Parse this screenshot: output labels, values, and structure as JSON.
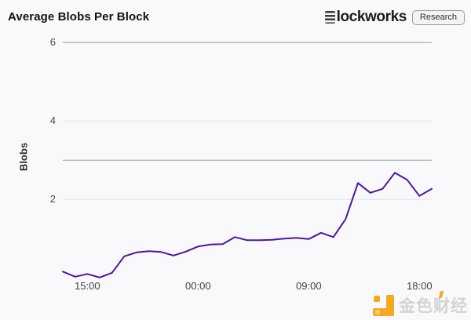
{
  "page": {
    "background": "#f9f9fb"
  },
  "brand": {
    "name": "Blockworks",
    "name_after_mark": "lockworks",
    "badge": "Research"
  },
  "watermark": {
    "text": "金色财经"
  },
  "colors": {
    "line": "#4a15a6",
    "grid_light": "#e4e4e9",
    "grid_dark": "#9b9ba1",
    "tick_text": "#4a4a4f",
    "title_text": "#131316",
    "watermark_orange": "#f6a81f",
    "watermark_gray": "#d3d3d7"
  },
  "chart_data": {
    "type": "line",
    "title": "Average Blobs Per Block",
    "xlabel": "",
    "ylabel": "Blobs",
    "ylim": [
      0,
      6.3
    ],
    "grid": true,
    "legend": false,
    "y_ticks": [
      2,
      4,
      6
    ],
    "reference_lines": [
      3,
      6
    ],
    "x_ticks": [
      {
        "index": 2,
        "label": "15:00"
      },
      {
        "index": 11,
        "label": "00:00"
      },
      {
        "index": 20,
        "label": "09:00"
      },
      {
        "index": 29,
        "label": "18:00"
      }
    ],
    "x": [
      "13:00",
      "14:00",
      "15:00",
      "16:00",
      "17:00",
      "18:00",
      "19:00",
      "20:00",
      "21:00",
      "22:00",
      "23:00",
      "00:00",
      "01:00",
      "02:00",
      "03:00",
      "04:00",
      "05:00",
      "06:00",
      "07:00",
      "08:00",
      "09:00",
      "10:00",
      "11:00",
      "12:00",
      "13:00",
      "14:00",
      "15:00",
      "16:00",
      "17:00",
      "18:00",
      "19:00"
    ],
    "series": [
      {
        "name": "Average Blobs Per Block",
        "values": [
          0.16,
          0.03,
          0.1,
          0.01,
          0.13,
          0.55,
          0.65,
          0.68,
          0.66,
          0.57,
          0.67,
          0.8,
          0.85,
          0.86,
          1.04,
          0.96,
          0.96,
          0.97,
          1.0,
          1.02,
          0.99,
          1.15,
          1.04,
          1.5,
          2.42,
          2.17,
          2.27,
          2.68,
          2.5,
          2.09,
          2.27
        ]
      }
    ]
  }
}
